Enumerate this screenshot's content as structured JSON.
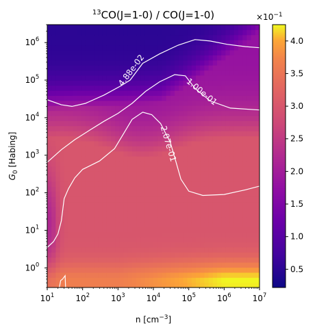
{
  "chart_data": {
    "type": "heatmap",
    "title_sup": "13",
    "title_rest": "CO(J=1-0) / CO(J=1-0)",
    "xlabel_pre": "n [cm",
    "xlabel_sup": "−3",
    "xlabel_post": "]",
    "ylabel_pre": "G",
    "ylabel_sub": "0",
    "ylabel_post": " [Habing]",
    "x_scale": "log",
    "y_scale": "log",
    "xlim": [
      10,
      10000000
    ],
    "ylim": [
      0.3,
      3000000
    ],
    "x_ticks": [
      {
        "value": 10,
        "base": "10",
        "exp": "1"
      },
      {
        "value": 100,
        "base": "10",
        "exp": "2"
      },
      {
        "value": 1000,
        "base": "10",
        "exp": "3"
      },
      {
        "value": 10000,
        "base": "10",
        "exp": "4"
      },
      {
        "value": 100000,
        "base": "10",
        "exp": "5"
      },
      {
        "value": 1000000,
        "base": "10",
        "exp": "6"
      },
      {
        "value": 10000000,
        "base": "10",
        "exp": "7"
      }
    ],
    "y_ticks": [
      {
        "value": 1,
        "base": "10",
        "exp": "0"
      },
      {
        "value": 10,
        "base": "10",
        "exp": "1"
      },
      {
        "value": 100,
        "base": "10",
        "exp": "2"
      },
      {
        "value": 1000,
        "base": "10",
        "exp": "3"
      },
      {
        "value": 10000,
        "base": "10",
        "exp": "4"
      },
      {
        "value": 100000,
        "base": "10",
        "exp": "5"
      },
      {
        "value": 1000000,
        "base": "10",
        "exp": "6"
      }
    ],
    "colormap": "plasma",
    "colorbar": {
      "min": 0.022,
      "max": 0.425,
      "multiplier_base": "×10",
      "multiplier_exp": "−1",
      "ticks": [
        {
          "value": 0.05,
          "label": "0.5"
        },
        {
          "value": 0.1,
          "label": "1.0"
        },
        {
          "value": 0.15,
          "label": "1.5"
        },
        {
          "value": 0.2,
          "label": "2.0"
        },
        {
          "value": 0.25,
          "label": "2.5"
        },
        {
          "value": 0.3,
          "label": "3.0"
        },
        {
          "value": 0.35,
          "label": "3.5"
        },
        {
          "value": 0.4,
          "label": "4.0"
        }
      ]
    },
    "contours": [
      {
        "level": 0.0488,
        "label": "4.88e-02",
        "label_at": [
          2400,
          180000
        ],
        "points": [
          [
            10,
            30000
          ],
          [
            25,
            22000
          ],
          [
            50,
            20000
          ],
          [
            120,
            24000
          ],
          [
            400,
            40000
          ],
          [
            1200,
            70000
          ],
          [
            2200,
            100000
          ],
          [
            5000,
            280000
          ],
          [
            15000,
            500000
          ],
          [
            50000,
            850000
          ],
          [
            150000,
            1200000
          ],
          [
            400000,
            1100000
          ],
          [
            1200000,
            900000
          ],
          [
            4000000,
            780000
          ],
          [
            10000000,
            730000
          ]
        ]
      },
      {
        "level": 0.1,
        "label": "1.00e-01",
        "label_at": [
          230000,
          48000
        ],
        "points": [
          [
            10,
            650
          ],
          [
            25,
            1400
          ],
          [
            60,
            2600
          ],
          [
            150,
            4500
          ],
          [
            400,
            8000
          ],
          [
            1000,
            13000
          ],
          [
            2500,
            24000
          ],
          [
            6000,
            50000
          ],
          [
            15000,
            90000
          ],
          [
            40000,
            140000
          ],
          [
            80000,
            130000
          ],
          [
            150000,
            60000
          ],
          [
            400000,
            28000
          ],
          [
            1500000,
            18000
          ],
          [
            10000000,
            16000
          ]
        ]
      },
      {
        "level": 0.207,
        "label": "2.07e-01",
        "label_at": [
          26000,
          2000
        ],
        "points": [
          [
            10,
            3.5
          ],
          [
            15,
            5
          ],
          [
            20,
            8
          ],
          [
            25,
            18
          ],
          [
            30,
            70
          ],
          [
            40,
            130
          ],
          [
            60,
            250
          ],
          [
            100,
            420
          ],
          [
            300,
            700
          ],
          [
            800,
            1500
          ],
          [
            1500,
            4000
          ],
          [
            2500,
            9000
          ],
          [
            5000,
            14000
          ],
          [
            9000,
            12000
          ],
          [
            16000,
            7000
          ],
          [
            30000,
            2200
          ],
          [
            45000,
            600
          ],
          [
            60000,
            230
          ],
          [
            100000,
            110
          ],
          [
            250000,
            85
          ],
          [
            1000000,
            90
          ],
          [
            4000000,
            120
          ],
          [
            10000000,
            150
          ]
        ]
      },
      {
        "level": 0.207,
        "label": "",
        "label_at": [
          0,
          0
        ],
        "points": [
          [
            22,
            0.3
          ],
          [
            24,
            0.46
          ],
          [
            27,
            0.5
          ],
          [
            32,
            0.62
          ],
          [
            33,
            0.3
          ]
        ]
      }
    ],
    "grid": false
  }
}
